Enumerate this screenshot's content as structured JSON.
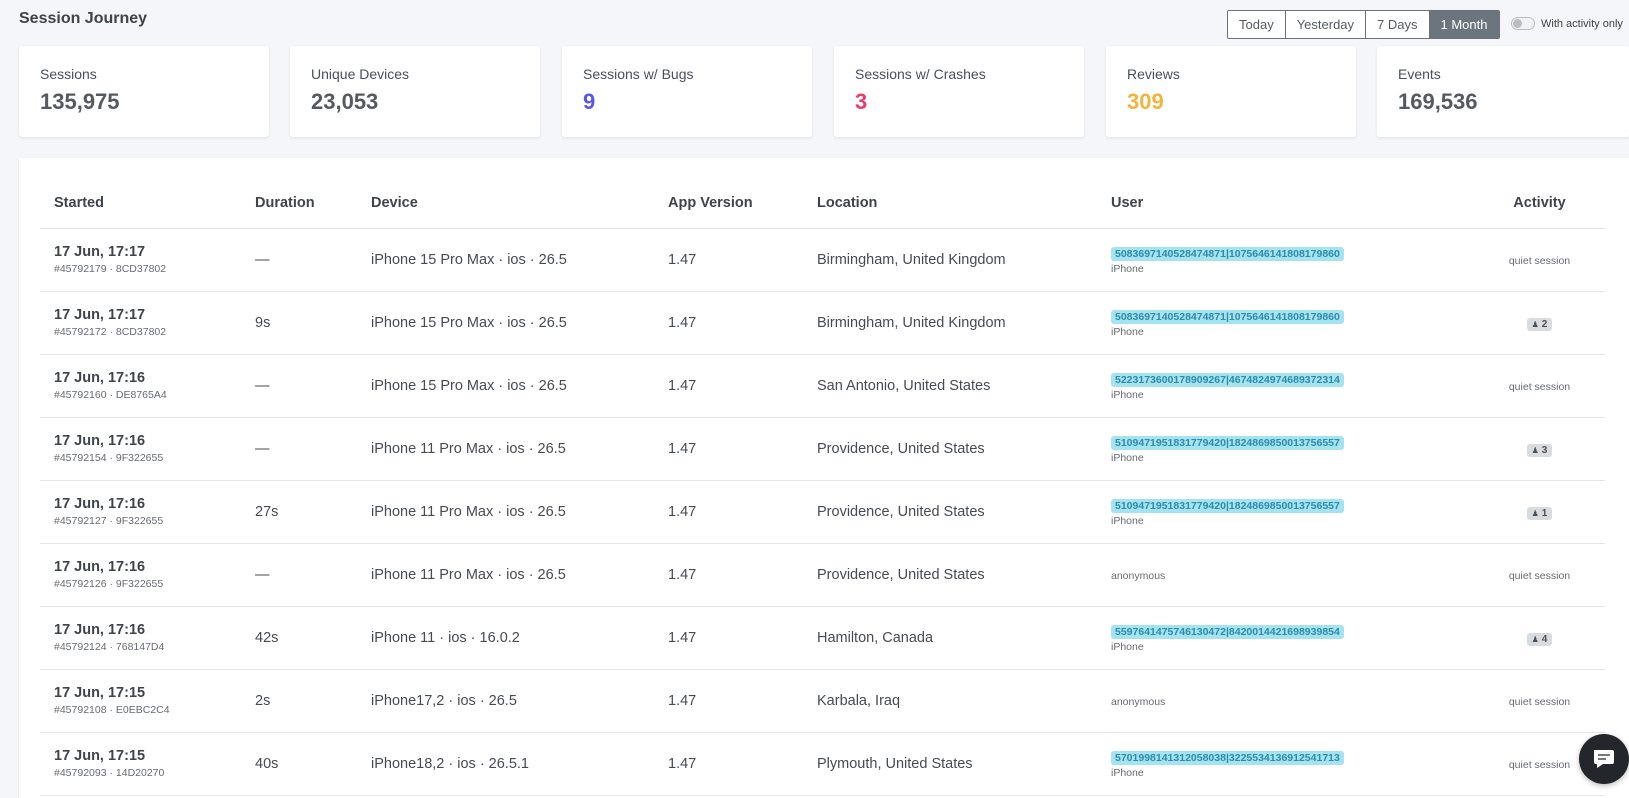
{
  "page": {
    "title": "Session Journey"
  },
  "range_buttons": [
    {
      "label": "Today",
      "active": false
    },
    {
      "label": "Yesterday",
      "active": false
    },
    {
      "label": "7 Days",
      "active": false
    },
    {
      "label": "1 Month",
      "active": true
    }
  ],
  "activity_filter": {
    "label": "With activity only",
    "enabled": false
  },
  "stats": [
    {
      "label": "Sessions",
      "value": "135,975",
      "color": "#555a60"
    },
    {
      "label": "Unique Devices",
      "value": "23,053",
      "color": "#555a60"
    },
    {
      "label": "Sessions w/ Bugs",
      "value": "9",
      "color": "#5b55e6"
    },
    {
      "label": "Sessions w/ Crashes",
      "value": "3",
      "color": "#e83e68"
    },
    {
      "label": "Reviews",
      "value": "309",
      "color": "#f2b43c"
    },
    {
      "label": "Events",
      "value": "169,536",
      "color": "#555a60"
    }
  ],
  "table": {
    "columns": [
      "Started",
      "Duration",
      "Device",
      "App Version",
      "Location",
      "User",
      "Activity"
    ],
    "rows": [
      {
        "started": "17 Jun, 17:17",
        "session_ref": "#45792179 · 8CD37802",
        "duration": "—",
        "device": "iPhone 15 Pro Max · ios · 26.5",
        "app_version": "1.47",
        "location": "Birmingham, United Kingdom",
        "user_id": "5083697140528474871|1075646141808179860",
        "user_device": "iPhone",
        "activity": "quiet session"
      },
      {
        "started": "17 Jun, 17:17",
        "session_ref": "#45792172 · 8CD37802",
        "duration": "9s",
        "device": "iPhone 15 Pro Max · ios · 26.5",
        "app_version": "1.47",
        "location": "Birmingham, United Kingdom",
        "user_id": "5083697140528474871|1075646141808179860",
        "user_device": "iPhone",
        "activity_count": "2"
      },
      {
        "started": "17 Jun, 17:16",
        "session_ref": "#45792160 · DE8765A4",
        "duration": "—",
        "device": "iPhone 15 Pro Max · ios · 26.5",
        "app_version": "1.47",
        "location": "San Antonio, United States",
        "user_id": "5223173600178909267|4674824974689372314",
        "user_device": "iPhone",
        "activity": "quiet session"
      },
      {
        "started": "17 Jun, 17:16",
        "session_ref": "#45792154 · 9F322655",
        "duration": "—",
        "device": "iPhone 11 Pro Max · ios · 26.5",
        "app_version": "1.47",
        "location": "Providence, United States",
        "user_id": "5109471951831779420|1824869850013756557",
        "user_device": "iPhone",
        "activity_count": "3"
      },
      {
        "started": "17 Jun, 17:16",
        "session_ref": "#45792127 · 9F322655",
        "duration": "27s",
        "device": "iPhone 11 Pro Max · ios · 26.5",
        "app_version": "1.47",
        "location": "Providence, United States",
        "user_id": "5109471951831779420|1824869850013756557",
        "user_device": "iPhone",
        "activity_count": "1"
      },
      {
        "started": "17 Jun, 17:16",
        "session_ref": "#45792126 · 9F322655",
        "duration": "—",
        "device": "iPhone 11 Pro Max · ios · 26.5",
        "app_version": "1.47",
        "location": "Providence, United States",
        "user_anonymous": "anonymous",
        "activity": "quiet session"
      },
      {
        "started": "17 Jun, 17:16",
        "session_ref": "#45792124 · 768147D4",
        "duration": "42s",
        "device": "iPhone 11 · ios · 16.0.2",
        "app_version": "1.47",
        "location": "Hamilton, Canada",
        "user_id": "5597641475746130472|8420014421698939854",
        "user_device": "iPhone",
        "activity_count": "4"
      },
      {
        "started": "17 Jun, 17:15",
        "session_ref": "#45792108 · E0EBC2C4",
        "duration": "2s",
        "device": "iPhone17,2 · ios · 26.5",
        "app_version": "1.47",
        "location": "Karbala, Iraq",
        "user_anonymous": "anonymous",
        "activity": "quiet session"
      },
      {
        "started": "17 Jun, 17:15",
        "session_ref": "#45792093 · 14D20270",
        "duration": "40s",
        "device": "iPhone18,2 · ios · 26.5.1",
        "app_version": "1.47",
        "location": "Plymouth, United States",
        "user_id": "5701998141312058038|3225534136912541713",
        "user_device": "iPhone",
        "activity": "quiet session"
      }
    ]
  },
  "icons": {
    "activity": "person-icon",
    "chat": "chat-bubble-icon"
  }
}
